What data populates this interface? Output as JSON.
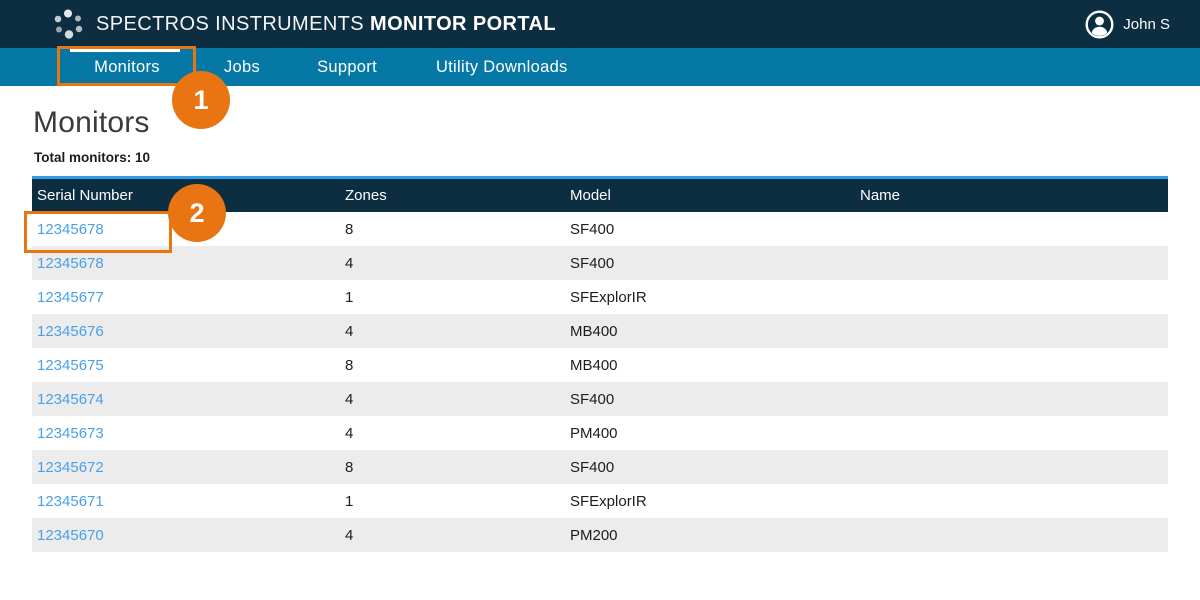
{
  "header": {
    "brand_primary": "SPECTROS INSTRUMENTS",
    "brand_bold": "MONITOR PORTAL",
    "user_name": "John S"
  },
  "nav": {
    "items": [
      {
        "label": "Monitors",
        "active": true
      },
      {
        "label": "Jobs",
        "active": false
      },
      {
        "label": "Support",
        "active": false
      },
      {
        "label": "Utility Downloads",
        "active": false
      }
    ]
  },
  "page": {
    "title": "Monitors",
    "total_monitors_label": "Total monitors: 10"
  },
  "table": {
    "columns": [
      "Serial Number",
      "Zones",
      "Model",
      "Name"
    ],
    "rows": [
      {
        "serial": "12345678",
        "zones": "8",
        "model": "SF400",
        "name": ""
      },
      {
        "serial": "12345678",
        "zones": "4",
        "model": "SF400",
        "name": ""
      },
      {
        "serial": "12345677",
        "zones": "1",
        "model": "SFExplorIR",
        "name": ""
      },
      {
        "serial": "12345676",
        "zones": "4",
        "model": "MB400",
        "name": ""
      },
      {
        "serial": "12345675",
        "zones": "8",
        "model": "MB400",
        "name": ""
      },
      {
        "serial": "12345674",
        "zones": "4",
        "model": "SF400",
        "name": ""
      },
      {
        "serial": "12345673",
        "zones": "4",
        "model": "PM400",
        "name": ""
      },
      {
        "serial": "12345672",
        "zones": "8",
        "model": "SF400",
        "name": ""
      },
      {
        "serial": "12345671",
        "zones": "1",
        "model": "SFExplorIR",
        "name": ""
      },
      {
        "serial": "12345670",
        "zones": "4",
        "model": "PM200",
        "name": ""
      }
    ]
  },
  "annotations": {
    "steps": [
      {
        "number": "1"
      },
      {
        "number": "2"
      }
    ]
  },
  "colors": {
    "header-bg": "#0d2d41",
    "nav-bg": "#0678a6",
    "accent-blue": "#2f9ce4",
    "link-blue": "#4aa0e8",
    "row-alt": "#ececec",
    "annotation-orange": "#e87511",
    "text-dark": "#1d1d1b"
  }
}
